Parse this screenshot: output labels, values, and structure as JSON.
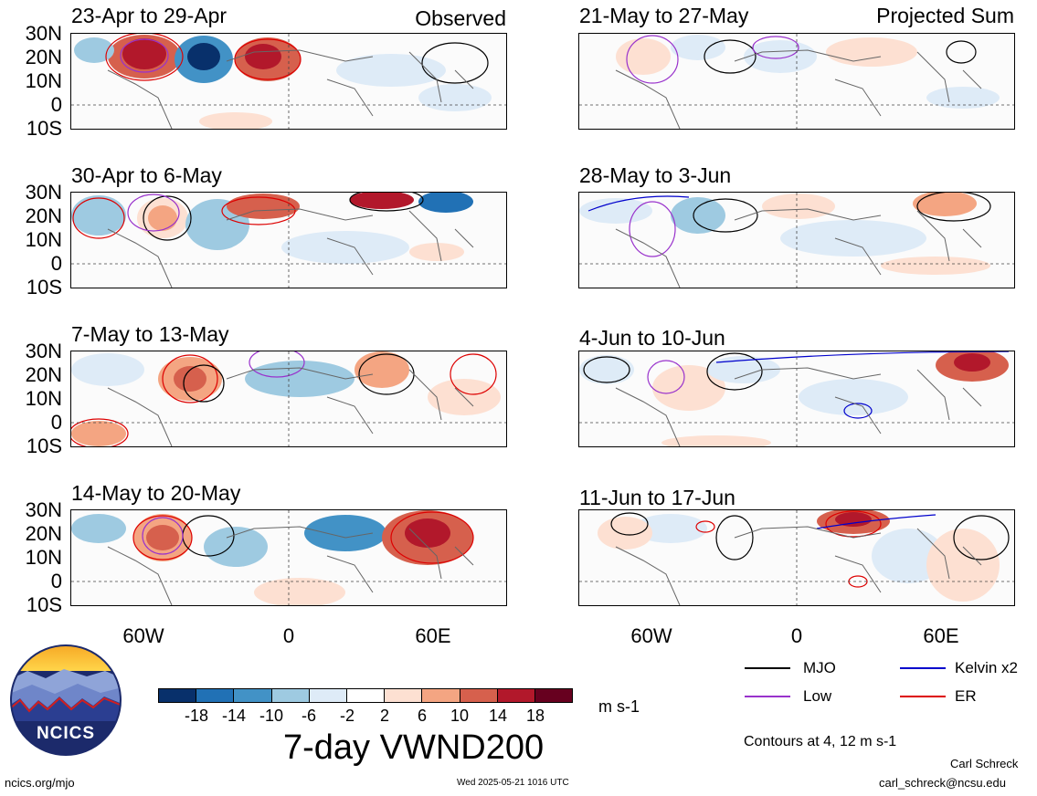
{
  "corner_labels": {
    "left": "Observed",
    "right": "Projected Sum"
  },
  "panels": [
    {
      "title": "23-Apr to 29-Apr"
    },
    {
      "title": "30-Apr to 6-May"
    },
    {
      "title": "7-May to 13-May"
    },
    {
      "title": "14-May to 20-May"
    },
    {
      "title": "21-May to 27-May"
    },
    {
      "title": "28-May to 3-Jun"
    },
    {
      "title": "4-Jun to 10-Jun"
    },
    {
      "title": "11-Jun to 17-Jun"
    }
  ],
  "lat_ticks": [
    "30N",
    "20N",
    "10N",
    "0",
    "10S"
  ],
  "lon_ticks": [
    "60W",
    "0",
    "60E"
  ],
  "colorbar": {
    "colors": [
      "#08306b",
      "#2171b5",
      "#4292c6",
      "#9ecae1",
      "#deebf7",
      "#ffffff",
      "#fde0d2",
      "#f4a582",
      "#d6604d",
      "#b2182b",
      "#67001f"
    ],
    "tick_labels": [
      "-18",
      "-14",
      "-10",
      "-6",
      "-2",
      "2",
      "6",
      "10",
      "14",
      "18"
    ],
    "units": "m s-1"
  },
  "legend": {
    "items": [
      {
        "label": "MJO",
        "color": "#000000"
      },
      {
        "label": "Kelvin x2",
        "color": "#0000cc"
      },
      {
        "label": "Low",
        "color": "#9932cc"
      },
      {
        "label": "ER",
        "color": "#dd0000"
      }
    ],
    "contours_note": "Contours at 4, 12 m s-1"
  },
  "main_title": "7-day VWND200",
  "logo_text": "NCICS",
  "footer": {
    "url": "ncics.org/mjo",
    "timestamp": "Wed 2025-05-21 1016 UTC",
    "author": "Carl Schreck",
    "email": "carl_schreck@ncsu.edu"
  }
}
